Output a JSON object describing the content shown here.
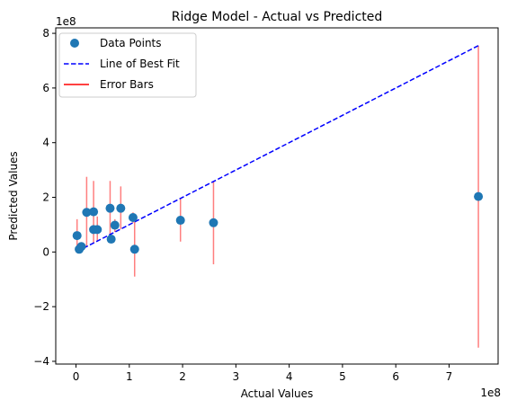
{
  "chart_data": {
    "type": "scatter",
    "title": "Ridge Model - Actual vs Predicted",
    "xlabel": "Actual Values",
    "ylabel": "Predicted Values",
    "x_scale_label": "1e8",
    "y_scale_label": "1e8",
    "xlim": [
      -0.38,
      7.92
    ],
    "ylim": [
      -4.1,
      8.2
    ],
    "xticks": [
      0,
      1,
      2,
      3,
      4,
      5,
      6,
      7
    ],
    "yticks": [
      -4,
      -2,
      0,
      2,
      4,
      6,
      8
    ],
    "xtick_labels": [
      "0",
      "1",
      "2",
      "3",
      "4",
      "5",
      "6",
      "7"
    ],
    "ytick_labels": [
      "−4",
      "−2",
      "0",
      "2",
      "4",
      "6",
      "8"
    ],
    "grid": false,
    "legend_position": "top-left",
    "series": [
      {
        "name": "Data Points",
        "kind": "scatter",
        "color": "#1f77b4",
        "points": [
          {
            "x": 0.02,
            "y": 0.6
          },
          {
            "x": 0.06,
            "y": 0.1
          },
          {
            "x": 0.1,
            "y": 0.2
          },
          {
            "x": 0.2,
            "y": 1.45
          },
          {
            "x": 0.33,
            "y": 1.47
          },
          {
            "x": 0.33,
            "y": 0.82
          },
          {
            "x": 0.4,
            "y": 0.82
          },
          {
            "x": 0.64,
            "y": 1.6
          },
          {
            "x": 0.66,
            "y": 0.47
          },
          {
            "x": 0.73,
            "y": 0.98
          },
          {
            "x": 0.84,
            "y": 1.6
          },
          {
            "x": 1.07,
            "y": 1.26
          },
          {
            "x": 1.1,
            "y": 0.1
          },
          {
            "x": 1.96,
            "y": 1.16
          },
          {
            "x": 2.58,
            "y": 1.07
          },
          {
            "x": 7.55,
            "y": 2.03
          }
        ]
      },
      {
        "name": "Line of Best Fit",
        "kind": "line",
        "style": "dashed",
        "color": "#0000ff",
        "points": [
          {
            "x": 0.02,
            "y": 0.02
          },
          {
            "x": 7.55,
            "y": 7.55
          }
        ]
      },
      {
        "name": "Error Bars",
        "kind": "errorbar",
        "color": "#ff0000",
        "segments": [
          {
            "x": 0.02,
            "y1": 1.2,
            "y2": 0.02
          },
          {
            "x": 0.2,
            "y1": 2.75,
            "y2": 0.2
          },
          {
            "x": 0.33,
            "y1": 2.6,
            "y2": 0.33
          },
          {
            "x": 0.4,
            "y1": 1.3,
            "y2": 0.4
          },
          {
            "x": 0.64,
            "y1": 2.6,
            "y2": 0.64
          },
          {
            "x": 0.73,
            "y1": 1.2,
            "y2": 0.73
          },
          {
            "x": 0.84,
            "y1": 2.4,
            "y2": 0.84
          },
          {
            "x": 1.07,
            "y1": 1.45,
            "y2": 1.07
          },
          {
            "x": 1.1,
            "y1": 1.1,
            "y2": -0.9
          },
          {
            "x": 1.96,
            "y1": 1.96,
            "y2": 0.38
          },
          {
            "x": 2.58,
            "y1": 2.58,
            "y2": -0.45
          },
          {
            "x": 7.55,
            "y1": 7.55,
            "y2": -3.5
          }
        ]
      }
    ]
  }
}
